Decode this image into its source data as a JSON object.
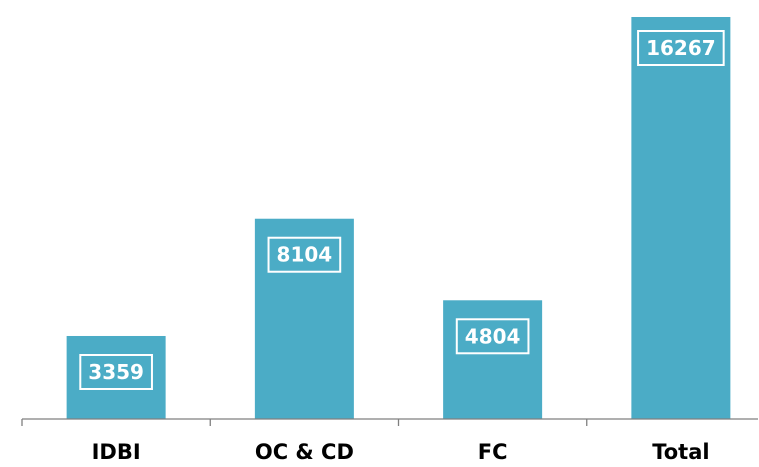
{
  "chart_data": {
    "type": "bar",
    "title": "",
    "xlabel": "",
    "ylabel": "",
    "categories": [
      "IDBI",
      "OC & CD",
      "FC",
      "Total"
    ],
    "values": [
      3359,
      8104,
      4804,
      16267
    ],
    "data_labels": [
      "3359",
      "8104",
      "4804",
      "16267"
    ],
    "ylim": [
      0,
      16267
    ],
    "grid": false,
    "legend": "none",
    "bar_color": "#4BACC6",
    "label_box_color": "#ffffff",
    "axis_color": "#7f7f7f"
  }
}
